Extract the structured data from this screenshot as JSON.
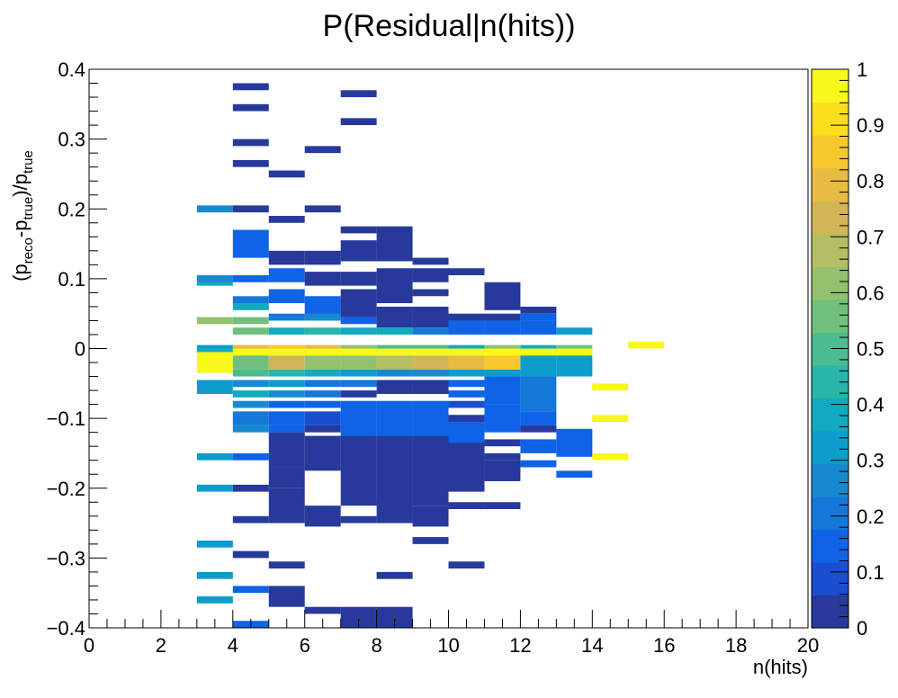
{
  "chart_data": {
    "type": "heatmap",
    "title": "P(Residual|n(hits))",
    "xlabel": "n(hits)",
    "ylabel": {
      "p": "(p",
      "reco": "reco",
      "dash": "-p",
      "true1": "true",
      "close": ")/p",
      "true2": "true"
    },
    "xlim": [
      0,
      20
    ],
    "ylim": [
      -0.4,
      0.4
    ],
    "zlim": [
      0,
      1
    ],
    "x_bin_width": 1,
    "y_bin_width": 0.01,
    "x_ticks": [
      0,
      2,
      4,
      6,
      8,
      10,
      12,
      14,
      16,
      18,
      20
    ],
    "x_tick_labels": [
      "0",
      "2",
      "4",
      "6",
      "8",
      "10",
      "12",
      "14",
      "16",
      "18",
      "20"
    ],
    "y_ticks": [
      -0.4,
      -0.3,
      -0.2,
      -0.1,
      0,
      0.1,
      0.2,
      0.3,
      0.4
    ],
    "y_tick_labels": [
      "−0.4",
      "−0.3",
      "−0.2",
      "−0.1",
      "0",
      "0.1",
      "0.2",
      "0.3",
      "0.4"
    ],
    "z_ticks": [
      0,
      0.1,
      0.2,
      0.3,
      0.4,
      0.5,
      0.6,
      0.7,
      0.8,
      0.9,
      1
    ],
    "z_tick_labels": [
      "0",
      "0.1",
      "0.2",
      "0.3",
      "0.4",
      "0.5",
      "0.6",
      "0.7",
      "0.8",
      "0.9",
      "1"
    ],
    "palette": [
      "#273a9c",
      "#1a4ed0",
      "#0f63e6",
      "#1478d8",
      "#1789d0",
      "#0e9ccc",
      "#12aac0",
      "#28b6aa",
      "#4bbc90",
      "#6fc07c",
      "#93c16e",
      "#b3bf62",
      "#d2b656",
      "#e8bb42",
      "#f8c92c",
      "#fade1c",
      "#f8f81a"
    ],
    "columns": [
      {
        "x": 3,
        "cells": [
          [
            0.2,
            0.005,
            0.25
          ],
          [
            0.095,
            0.005,
            0.35
          ],
          [
            0.1,
            0.005,
            0.25
          ],
          [
            0.04,
            0.005,
            0.65
          ],
          [
            0.0,
            0.005,
            0.3
          ],
          [
            -0.005,
            0.005,
            0.4
          ],
          [
            -0.02,
            0.015,
            1.0
          ],
          [
            -0.055,
            0.01,
            0.3
          ],
          [
            -0.155,
            0.005,
            0.3
          ],
          [
            -0.2,
            0.005,
            0.3
          ],
          [
            -0.28,
            0.005,
            0.3
          ],
          [
            -0.325,
            0.005,
            0.3
          ],
          [
            -0.36,
            0.005,
            0.3
          ]
        ]
      },
      {
        "x": 4,
        "cells": [
          [
            0.375,
            0.005,
            0.0
          ],
          [
            0.345,
            0.005,
            0.0
          ],
          [
            0.295,
            0.005,
            0.0
          ],
          [
            0.265,
            0.005,
            0.0
          ],
          [
            0.2,
            0.005,
            0.0
          ],
          [
            0.15,
            0.02,
            0.1
          ],
          [
            0.1,
            0.005,
            0.1
          ],
          [
            0.07,
            0.005,
            0.2
          ],
          [
            0.06,
            0.005,
            0.35
          ],
          [
            0.04,
            0.005,
            0.55
          ],
          [
            0.025,
            0.005,
            0.55
          ],
          [
            0.0,
            0.005,
            0.8
          ],
          [
            -0.005,
            0.005,
            1.0
          ],
          [
            -0.02,
            0.01,
            0.55
          ],
          [
            -0.035,
            0.005,
            0.5
          ],
          [
            -0.05,
            0.005,
            0.25
          ],
          [
            -0.065,
            0.005,
            0.35
          ],
          [
            -0.08,
            0.005,
            0.25
          ],
          [
            -0.1,
            0.01,
            0.2
          ],
          [
            -0.115,
            0.005,
            0.25
          ],
          [
            -0.155,
            0.005,
            0.1
          ],
          [
            -0.2,
            0.005,
            0.0
          ],
          [
            -0.245,
            0.005,
            0.0
          ],
          [
            -0.295,
            0.005,
            0.0
          ],
          [
            -0.345,
            0.005,
            0.1
          ],
          [
            -0.395,
            0.005,
            0.1
          ]
        ]
      },
      {
        "x": 5,
        "cells": [
          [
            0.25,
            0.005,
            0.0
          ],
          [
            0.185,
            0.005,
            0.0
          ],
          [
            0.13,
            0.01,
            0.0
          ],
          [
            0.105,
            0.01,
            0.1
          ],
          [
            0.075,
            0.01,
            0.1
          ],
          [
            0.045,
            0.005,
            0.2
          ],
          [
            0.025,
            0.005,
            0.4
          ],
          [
            0.0,
            0.005,
            0.85
          ],
          [
            -0.005,
            0.005,
            1.0
          ],
          [
            -0.02,
            0.01,
            0.75
          ],
          [
            -0.035,
            0.005,
            0.45
          ],
          [
            -0.05,
            0.005,
            0.3
          ],
          [
            -0.065,
            0.005,
            0.25
          ],
          [
            -0.08,
            0.005,
            0.15
          ],
          [
            -0.1,
            0.01,
            0.1
          ],
          [
            -0.115,
            0.005,
            0.1
          ],
          [
            -0.145,
            0.025,
            0.0
          ],
          [
            -0.185,
            0.015,
            0.0
          ],
          [
            -0.225,
            0.025,
            0.0
          ],
          [
            -0.31,
            0.005,
            0.0
          ],
          [
            -0.355,
            0.015,
            0.0
          ]
        ]
      },
      {
        "x": 6,
        "cells": [
          [
            0.285,
            0.005,
            0.0
          ],
          [
            0.2,
            0.005,
            0.0
          ],
          [
            0.13,
            0.01,
            0.0
          ],
          [
            0.1,
            0.01,
            0.0
          ],
          [
            0.06,
            0.015,
            0.1
          ],
          [
            0.045,
            0.005,
            0.25
          ],
          [
            0.025,
            0.005,
            0.45
          ],
          [
            0.0,
            0.005,
            0.8
          ],
          [
            -0.005,
            0.005,
            1.0
          ],
          [
            -0.02,
            0.01,
            0.65
          ],
          [
            -0.035,
            0.005,
            0.35
          ],
          [
            -0.05,
            0.005,
            0.2
          ],
          [
            -0.065,
            0.005,
            0.2
          ],
          [
            -0.08,
            0.005,
            0.15
          ],
          [
            -0.1,
            0.01,
            0.05
          ],
          [
            -0.115,
            0.005,
            0.0
          ],
          [
            -0.15,
            0.025,
            0.0
          ],
          [
            -0.24,
            0.015,
            0.0
          ],
          [
            -0.375,
            0.005,
            0.0
          ]
        ]
      },
      {
        "x": 7,
        "cells": [
          [
            0.365,
            0.005,
            0.0
          ],
          [
            0.325,
            0.005,
            0.0
          ],
          [
            0.17,
            0.005,
            0.0
          ],
          [
            0.14,
            0.015,
            0.0
          ],
          [
            0.1,
            0.01,
            0.0
          ],
          [
            0.065,
            0.02,
            0.0
          ],
          [
            0.04,
            0.005,
            0.1
          ],
          [
            0.025,
            0.005,
            0.35
          ],
          [
            0.0,
            0.005,
            0.6
          ],
          [
            -0.005,
            0.005,
            1.0
          ],
          [
            -0.02,
            0.01,
            0.65
          ],
          [
            -0.035,
            0.005,
            0.3
          ],
          [
            -0.05,
            0.005,
            0.2
          ],
          [
            -0.065,
            0.005,
            0.0
          ],
          [
            -0.1,
            0.025,
            0.1
          ],
          [
            -0.175,
            0.05,
            0.0
          ],
          [
            -0.245,
            0.005,
            0.0
          ],
          [
            -0.385,
            0.015,
            0.0
          ]
        ]
      },
      {
        "x": 8,
        "cells": [
          [
            0.15,
            0.025,
            0.0
          ],
          [
            0.09,
            0.025,
            0.0
          ],
          [
            0.045,
            0.015,
            0.0
          ],
          [
            0.025,
            0.005,
            0.35
          ],
          [
            0.0,
            0.005,
            0.5
          ],
          [
            -0.005,
            0.005,
            1.0
          ],
          [
            -0.02,
            0.01,
            0.7
          ],
          [
            -0.035,
            0.005,
            0.25
          ],
          [
            -0.055,
            0.01,
            0.0
          ],
          [
            -0.1,
            0.025,
            0.1
          ],
          [
            -0.175,
            0.05,
            0.0
          ],
          [
            -0.235,
            0.015,
            0.0
          ],
          [
            -0.325,
            0.005,
            0.0
          ],
          [
            -0.385,
            0.015,
            0.0
          ]
        ]
      },
      {
        "x": 9,
        "cells": [
          [
            0.125,
            0.005,
            0.0
          ],
          [
            0.105,
            0.01,
            0.0
          ],
          [
            0.08,
            0.005,
            0.0
          ],
          [
            0.045,
            0.015,
            0.0
          ],
          [
            0.025,
            0.005,
            0.2
          ],
          [
            0.0,
            0.005,
            0.5
          ],
          [
            -0.005,
            0.005,
            1.0
          ],
          [
            -0.02,
            0.01,
            0.75
          ],
          [
            -0.035,
            0.005,
            0.25
          ],
          [
            -0.055,
            0.01,
            0.0
          ],
          [
            -0.1,
            0.025,
            0.1
          ],
          [
            -0.175,
            0.05,
            0.0
          ],
          [
            -0.24,
            0.015,
            0.0
          ],
          [
            -0.275,
            0.005,
            0.0
          ]
        ]
      },
      {
        "x": 10,
        "cells": [
          [
            0.11,
            0.005,
            0.0
          ],
          [
            0.045,
            0.005,
            0.0
          ],
          [
            0.03,
            0.01,
            0.15
          ],
          [
            0.0,
            0.005,
            0.4
          ],
          [
            -0.005,
            0.005,
            1.0
          ],
          [
            -0.02,
            0.01,
            0.8
          ],
          [
            -0.035,
            0.005,
            0.3
          ],
          [
            -0.05,
            0.005,
            0.1
          ],
          [
            -0.065,
            0.005,
            0.1
          ],
          [
            -0.08,
            0.005,
            0.05
          ],
          [
            -0.1,
            0.005,
            0.0
          ],
          [
            -0.125,
            0.02,
            0.1
          ],
          [
            -0.17,
            0.035,
            0.0
          ],
          [
            -0.225,
            0.005,
            0.0
          ],
          [
            -0.31,
            0.005,
            0.0
          ]
        ]
      },
      {
        "x": 11,
        "cells": [
          [
            0.075,
            0.02,
            0.0
          ],
          [
            0.045,
            0.005,
            0.0
          ],
          [
            0.03,
            0.01,
            0.1
          ],
          [
            0.0,
            0.005,
            0.6
          ],
          [
            -0.005,
            0.005,
            1.0
          ],
          [
            -0.02,
            0.01,
            0.85
          ],
          [
            -0.035,
            0.005,
            0.3
          ],
          [
            -0.06,
            0.02,
            0.1
          ],
          [
            -0.1,
            0.02,
            0.1
          ],
          [
            -0.135,
            0.005,
            0.0
          ],
          [
            -0.155,
            0.005,
            0.0
          ],
          [
            -0.175,
            0.015,
            0.0
          ],
          [
            -0.225,
            0.005,
            0.0
          ]
        ]
      },
      {
        "x": 12,
        "cells": [
          [
            0.055,
            0.005,
            0.0
          ],
          [
            0.045,
            0.005,
            0.1
          ],
          [
            0.03,
            0.01,
            0.1
          ],
          [
            0.0,
            0.005,
            0.35
          ],
          [
            -0.005,
            0.005,
            1.0
          ],
          [
            -0.025,
            0.015,
            0.3
          ],
          [
            -0.065,
            0.025,
            0.2
          ],
          [
            -0.1,
            0.01,
            0.15
          ],
          [
            -0.115,
            0.005,
            0.0
          ],
          [
            -0.14,
            0.01,
            0.1
          ],
          [
            -0.165,
            0.005,
            0.1
          ]
        ]
      },
      {
        "x": 13,
        "cells": [
          [
            0.025,
            0.005,
            0.3
          ],
          [
            0.0,
            0.005,
            0.55
          ],
          [
            -0.005,
            0.005,
            1.0
          ],
          [
            -0.025,
            0.015,
            0.3
          ],
          [
            -0.135,
            0.02,
            0.1
          ],
          [
            -0.18,
            0.005,
            0.15
          ]
        ]
      },
      {
        "x": 14,
        "cells": [
          [
            -0.055,
            0.005,
            1.0
          ],
          [
            -0.1,
            0.005,
            1.0
          ],
          [
            -0.155,
            0.005,
            1.0
          ]
        ]
      },
      {
        "x": 15,
        "cells": [
          [
            0.005,
            0.005,
            1.0
          ]
        ]
      }
    ]
  }
}
